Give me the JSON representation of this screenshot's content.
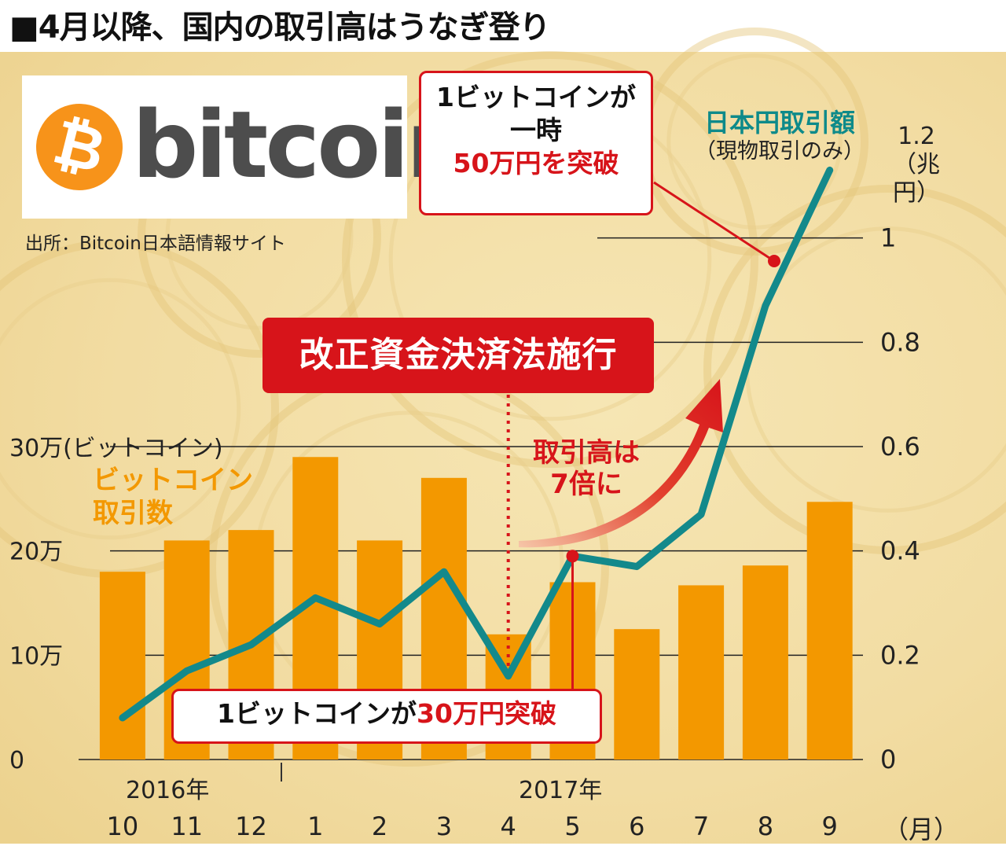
{
  "title": "■4月以降、国内の取引高はうなぎ登り",
  "source": "出所：Bitcoin日本語情報サイト",
  "logo": {
    "mark": "₿",
    "word": "bitcoin"
  },
  "callouts": {
    "top": {
      "line1": "1ビットコインが",
      "line2": "一時",
      "line3": "50万円を突破"
    },
    "bottom": {
      "part1": "1ビットコインが",
      "part2": "30万円突破"
    }
  },
  "event_label": "改正資金決済法施行",
  "note": {
    "line1": "取引高は",
    "line2": "7倍に"
  },
  "legend_right": {
    "name": "日本円取引額",
    "sub": "（現物取引のみ）"
  },
  "legend_left": {
    "line1": "ビットコイン",
    "line2": "取引数"
  },
  "y_right_unit": {
    "top": "1.2",
    "bottom": "（兆円）"
  },
  "y_left_unit": "30万(ビットコイン)",
  "years": {
    "y2016": "2016年",
    "y2017": "2017年"
  },
  "month_unit": "（月）",
  "colors": {
    "bar": "#f39800",
    "line": "#13898b",
    "accent": "#d7141a"
  },
  "chart_data": {
    "type": "bar+line",
    "categories": [
      "10",
      "11",
      "12",
      "1",
      "2",
      "3",
      "4",
      "5",
      "6",
      "7",
      "8",
      "9"
    ],
    "series": [
      {
        "name": "ビットコイン取引数",
        "type": "bar",
        "axis": "left",
        "values": [
          180000,
          210000,
          220000,
          290000,
          210000,
          270000,
          120000,
          170000,
          125000,
          167000,
          186000,
          247000
        ]
      },
      {
        "name": "日本円取引額",
        "type": "line",
        "axis": "right",
        "values": [
          0.08,
          0.17,
          0.22,
          0.31,
          0.26,
          0.36,
          0.16,
          0.39,
          0.37,
          0.47,
          0.87,
          1.13
        ]
      }
    ],
    "y_left": {
      "ylim": [
        0,
        300000
      ],
      "ticks": [
        0,
        100000,
        200000,
        300000
      ],
      "tick_labels": [
        "0",
        "10万",
        "20万",
        "30万"
      ]
    },
    "y_right": {
      "ylim": [
        0,
        1.2
      ],
      "ticks": [
        0,
        0.2,
        0.4,
        0.6,
        0.8,
        1,
        1.2
      ],
      "tick_labels": [
        "0",
        "0.2",
        "0.4",
        "0.6",
        "0.8",
        "1",
        "1.2"
      ]
    },
    "event_month_index": 6,
    "grid": true
  }
}
